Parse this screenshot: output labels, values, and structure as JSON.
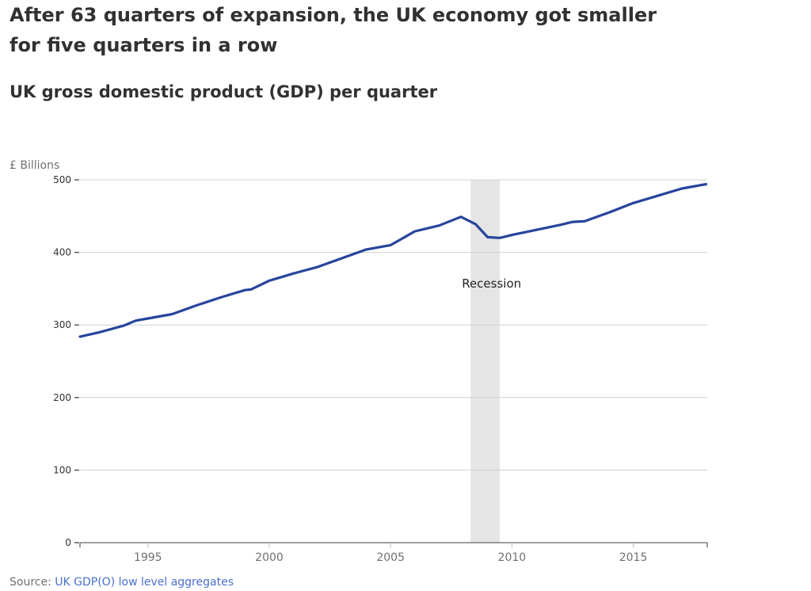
{
  "title": "After 63 quarters of expansion, the UK economy got smaller for five quarters in a row",
  "subtitle": "UK gross domestic product (GDP) per quarter",
  "source": {
    "prefix": "Source: ",
    "link_text": "UK GDP(O) low level aggregates"
  },
  "chart_data": {
    "type": "line",
    "ylabel": "£ Billions",
    "xlabel": "",
    "ylim": [
      0,
      500
    ],
    "xlim": [
      1992.2,
      2018.05
    ],
    "yticks": [
      0,
      100,
      200,
      300,
      400,
      500
    ],
    "xticks": [
      1995,
      2000,
      2005,
      2010,
      2015
    ],
    "grid": true,
    "line_color": "#27449c",
    "shading": {
      "label": "Recession",
      "from": 2008.3,
      "to": 2009.5,
      "color": "#e5e5e5"
    },
    "series": [
      {
        "x": [
          1992.2,
          1993,
          1994,
          1994.5,
          1995,
          1996,
          1997,
          1998,
          1999,
          1999.25,
          2000,
          2001,
          2002,
          2003,
          2004,
          2005,
          2006,
          2007,
          2007.9,
          2008.5,
          2009,
          2009.5,
          2010,
          2011,
          2012,
          2012.5,
          2013,
          2014,
          2015,
          2016,
          2017,
          2018
        ],
        "y": [
          284,
          290,
          299,
          306,
          309,
          315,
          327,
          338,
          348,
          349,
          361,
          371,
          380,
          392,
          404,
          410,
          429,
          437,
          449,
          439,
          421,
          420,
          424,
          431,
          438,
          442,
          443,
          455,
          468,
          478,
          488,
          494
        ]
      }
    ]
  }
}
